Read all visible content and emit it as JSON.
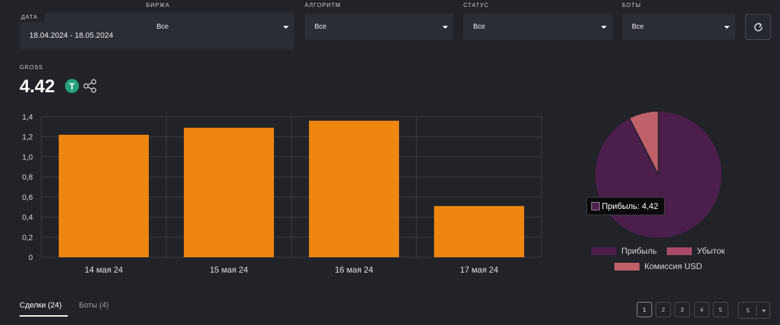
{
  "filters": {
    "date": {
      "label": "ДАТА",
      "value": "18.04.2024 - 18.05.2024"
    },
    "exchange": {
      "label": "БИРЖА",
      "value": "Все"
    },
    "algorithm": {
      "label": "АЛГОРИТМ",
      "value": "Все"
    },
    "status": {
      "label": "СТАТУС",
      "value": "Все"
    },
    "bots": {
      "label": "БОТЫ",
      "value": "Все"
    }
  },
  "gross": {
    "label": "GROSS",
    "value": "4.42",
    "currency_icon": "tether-icon",
    "currency_glyph": "T"
  },
  "chart_data": [
    {
      "type": "bar",
      "categories": [
        "14 мая 24",
        "15 мая 24",
        "16 мая 24",
        "17 мая 24"
      ],
      "values": [
        1.22,
        1.29,
        1.36,
        0.51
      ],
      "yticks": [
        "0",
        "0,2",
        "0,4",
        "0,6",
        "0,8",
        "1,0",
        "1,2",
        "1,4"
      ],
      "ylim": [
        0,
        1.4
      ],
      "color": "#ef8610",
      "grid": true
    },
    {
      "type": "pie",
      "labels": [
        "Прибыль",
        "Убыток",
        "Комиссия USD"
      ],
      "values": [
        4.42,
        0,
        0.36
      ],
      "colors": [
        "#4b1e4c",
        "#a84a6a",
        "#c0606a"
      ],
      "legend_position": "bottom",
      "tooltip": "Прибыль: 4,42"
    }
  ],
  "tabs": [
    {
      "label": "Сделки (24)",
      "active": true
    },
    {
      "label": "Боты (4)",
      "active": false
    }
  ],
  "pagination": {
    "pages": [
      "1",
      "2",
      "3",
      "4",
      "5"
    ],
    "current": "1",
    "page_size": "5"
  }
}
